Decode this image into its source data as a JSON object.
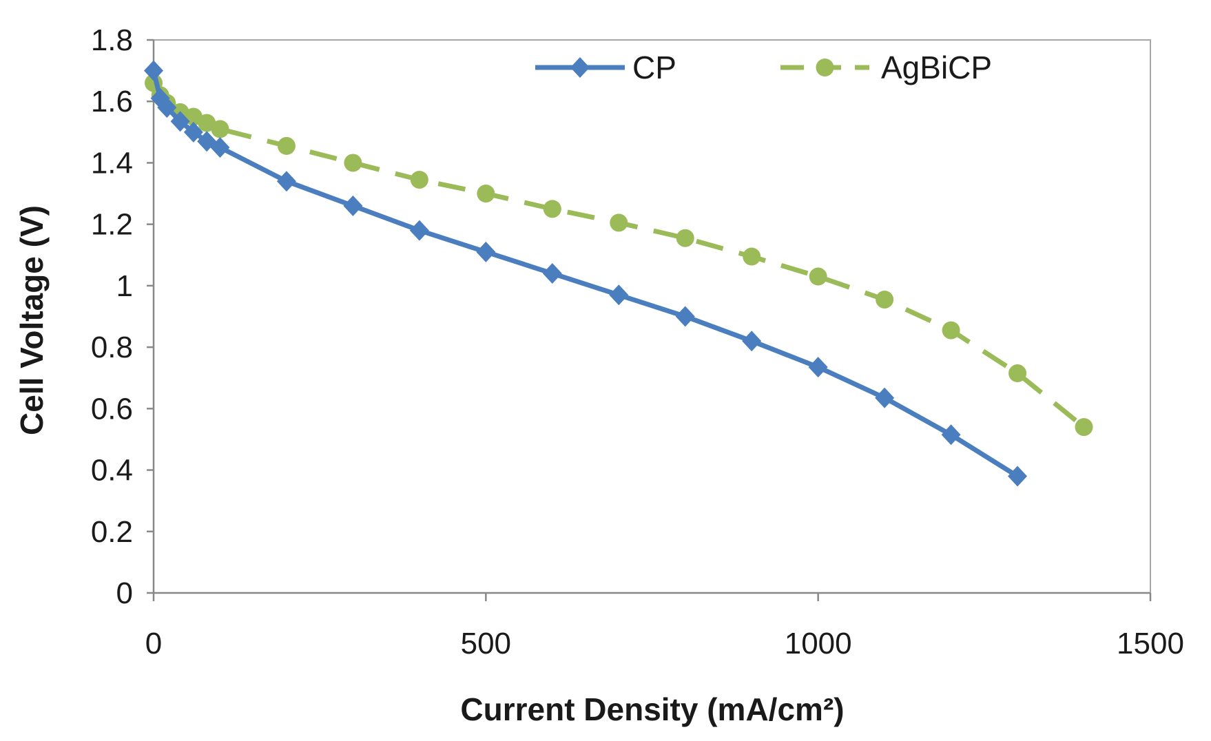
{
  "chart_data": {
    "type": "line",
    "title": "",
    "xlabel": "Current Density (mA/cm²)",
    "ylabel": "Cell Voltage (V)",
    "xlim": [
      0,
      1500
    ],
    "ylim": [
      0,
      1.8
    ],
    "xticks": [
      "0",
      "500",
      "1000",
      "1500"
    ],
    "yticks": [
      "0",
      "0.2",
      "0.4",
      "0.6",
      "0.8",
      "1",
      "1.2",
      "1.4",
      "1.6",
      "1.8"
    ],
    "grid": false,
    "legend_position": "top-right",
    "series": [
      {
        "name": "CP",
        "color": "#4a7ebf",
        "marker": "diamond",
        "line_style": "solid",
        "x": [
          0,
          10,
          20,
          40,
          60,
          80,
          100,
          200,
          300,
          400,
          500,
          600,
          700,
          800,
          900,
          1000,
          1100,
          1200,
          1300
        ],
        "y": [
          1.7,
          1.61,
          1.58,
          1.535,
          1.5,
          1.47,
          1.45,
          1.34,
          1.26,
          1.18,
          1.11,
          1.04,
          0.97,
          0.9,
          0.82,
          0.735,
          0.635,
          0.515,
          0.38
        ]
      },
      {
        "name": "AgBiCP",
        "color": "#9bbb59",
        "marker": "circle",
        "line_style": "dashed",
        "x": [
          0,
          10,
          20,
          40,
          60,
          80,
          100,
          200,
          300,
          400,
          500,
          600,
          700,
          800,
          900,
          1000,
          1100,
          1200,
          1300,
          1400
        ],
        "y": [
          1.66,
          1.62,
          1.595,
          1.565,
          1.55,
          1.53,
          1.51,
          1.455,
          1.4,
          1.345,
          1.3,
          1.25,
          1.205,
          1.155,
          1.095,
          1.03,
          0.955,
          0.855,
          0.715,
          0.54
        ]
      }
    ]
  }
}
